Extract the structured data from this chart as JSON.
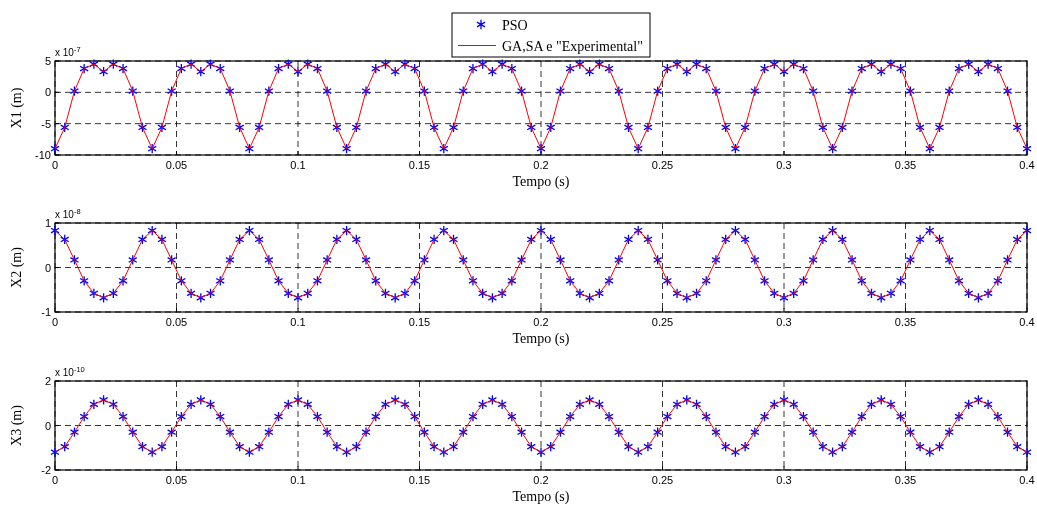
{
  "chart_data": [
    {
      "type": "line",
      "xlabel": "Tempo (s)",
      "ylabel": "X1 (m)",
      "annotations": [
        "x 10$^{-7}$"
      ],
      "legend": "top",
      "grid": true,
      "x": [
        0,
        0.004,
        0.008,
        0.012,
        0.016,
        0.02,
        0.024,
        0.028,
        0.032,
        0.036,
        0.04,
        0.044,
        0.048,
        0.052,
        0.056,
        0.06,
        0.064,
        0.068,
        0.072,
        0.076,
        0.08,
        0.084,
        0.088,
        0.092,
        0.096,
        0.1,
        0.104,
        0.108,
        0.112,
        0.116,
        0.12,
        0.124,
        0.128,
        0.132,
        0.136,
        0.14,
        0.144,
        0.148,
        0.152,
        0.156,
        0.16,
        0.164,
        0.168,
        0.172,
        0.176,
        0.18,
        0.184,
        0.188,
        0.192,
        0.196,
        0.2,
        0.204,
        0.208,
        0.212,
        0.216,
        0.22,
        0.224,
        0.228,
        0.232,
        0.236,
        0.24,
        0.244,
        0.248,
        0.252,
        0.256,
        0.26,
        0.264,
        0.268,
        0.272,
        0.276,
        0.28,
        0.284,
        0.288,
        0.292,
        0.296,
        0.3,
        0.304,
        0.308,
        0.312,
        0.316,
        0.32,
        0.324,
        0.328,
        0.332,
        0.336,
        0.34,
        0.344,
        0.348,
        0.352,
        0.356,
        0.36,
        0.364,
        0.368,
        0.372,
        0.376,
        0.38,
        0.384,
        0.388,
        0.392,
        0.396,
        0.4
      ],
      "xlim": [
        0,
        0.4
      ],
      "xticks": [
        0,
        0.05,
        0.1,
        0.15,
        0.2,
        0.25,
        0.3,
        0.35,
        0.4
      ],
      "ylim": [
        -10,
        5
      ],
      "yticks": [
        -10,
        -5,
        0,
        5
      ],
      "series": [
        {
          "name": "PSO",
          "type": "scatter",
          "marker": "cross",
          "color": "#0000ff",
          "values": [
            -9,
            -5.6,
            0.2,
            3.8,
            4.5,
            3.3,
            4.5,
            3.8,
            0.2,
            -5.6,
            -9,
            -5.6,
            0.2,
            3.8,
            4.5,
            3.3,
            4.5,
            3.8,
            0.2,
            -5.6,
            -9,
            -5.6,
            0.2,
            3.8,
            4.5,
            3.3,
            4.5,
            3.8,
            0.2,
            -5.6,
            -9,
            -5.6,
            0.2,
            3.8,
            4.5,
            3.3,
            4.5,
            3.8,
            0.2,
            -5.6,
            -9,
            -5.6,
            0.2,
            3.8,
            4.5,
            3.3,
            4.5,
            3.8,
            0.2,
            -5.6,
            -9,
            -5.6,
            0.2,
            3.8,
            4.5,
            3.3,
            4.5,
            3.8,
            0.2,
            -5.6,
            -9,
            -5.6,
            0.2,
            3.8,
            4.5,
            3.3,
            4.5,
            3.8,
            0.2,
            -5.6,
            -9,
            -5.6,
            0.2,
            3.8,
            4.5,
            3.3,
            4.5,
            3.8,
            0.2,
            -5.6,
            -9,
            -5.6,
            0.2,
            3.8,
            4.5,
            3.3,
            4.5,
            3.8,
            0.2,
            -5.6,
            -9,
            -5.6,
            0.2,
            3.8,
            4.5,
            3.3,
            4.5,
            3.8,
            0.2,
            -5.6,
            -9
          ]
        },
        {
          "name": "GA,SA e \"Experimental\"",
          "type": "line",
          "color": "#ff0000",
          "values": [
            -9,
            -5.6,
            0.2,
            3.8,
            4.5,
            3.3,
            4.5,
            3.8,
            0.2,
            -5.6,
            -9,
            -5.6,
            0.2,
            3.8,
            4.5,
            3.3,
            4.5,
            3.8,
            0.2,
            -5.6,
            -9,
            -5.6,
            0.2,
            3.8,
            4.5,
            3.3,
            4.5,
            3.8,
            0.2,
            -5.6,
            -9,
            -5.6,
            0.2,
            3.8,
            4.5,
            3.3,
            4.5,
            3.8,
            0.2,
            -5.6,
            -9,
            -5.6,
            0.2,
            3.8,
            4.5,
            3.3,
            4.5,
            3.8,
            0.2,
            -5.6,
            -9,
            -5.6,
            0.2,
            3.8,
            4.5,
            3.3,
            4.5,
            3.8,
            0.2,
            -5.6,
            -9,
            -5.6,
            0.2,
            3.8,
            4.5,
            3.3,
            4.5,
            3.8,
            0.2,
            -5.6,
            -9,
            -5.6,
            0.2,
            3.8,
            4.5,
            3.3,
            4.5,
            3.8,
            0.2,
            -5.6,
            -9,
            -5.6,
            0.2,
            3.8,
            4.5,
            3.3,
            4.5,
            3.8,
            0.2,
            -5.6,
            -9,
            -5.6,
            0.2,
            3.8,
            4.5,
            3.3,
            4.5,
            3.8,
            0.2,
            -5.6,
            -9
          ]
        }
      ]
    },
    {
      "type": "line",
      "xlabel": "Tempo (s)",
      "ylabel": "X2 (m)",
      "annotations": [
        "x 10$^{-8}$"
      ],
      "grid": true,
      "x": [
        0,
        0.004,
        0.008,
        0.012,
        0.016,
        0.02,
        0.024,
        0.028,
        0.032,
        0.036,
        0.04,
        0.044,
        0.048,
        0.052,
        0.056,
        0.06,
        0.064,
        0.068,
        0.072,
        0.076,
        0.08,
        0.084,
        0.088,
        0.092,
        0.096,
        0.1,
        0.104,
        0.108,
        0.112,
        0.116,
        0.12,
        0.124,
        0.128,
        0.132,
        0.136,
        0.14,
        0.144,
        0.148,
        0.152,
        0.156,
        0.16,
        0.164,
        0.168,
        0.172,
        0.176,
        0.18,
        0.184,
        0.188,
        0.192,
        0.196,
        0.2,
        0.204,
        0.208,
        0.212,
        0.216,
        0.22,
        0.224,
        0.228,
        0.232,
        0.236,
        0.24,
        0.244,
        0.248,
        0.252,
        0.256,
        0.26,
        0.264,
        0.268,
        0.272,
        0.276,
        0.28,
        0.284,
        0.288,
        0.292,
        0.296,
        0.3,
        0.304,
        0.308,
        0.312,
        0.316,
        0.32,
        0.324,
        0.328,
        0.332,
        0.336,
        0.34,
        0.344,
        0.348,
        0.352,
        0.356,
        0.36,
        0.364,
        0.368,
        0.372,
        0.376,
        0.38,
        0.384,
        0.388,
        0.392,
        0.396,
        0.4
      ],
      "xlim": [
        0,
        0.4
      ],
      "xticks": [
        0,
        0.05,
        0.1,
        0.15,
        0.2,
        0.25,
        0.3,
        0.35,
        0.4
      ],
      "ylim": [
        -1,
        1
      ],
      "yticks": [
        -1,
        0,
        1
      ],
      "series": [
        {
          "type": "scatter",
          "marker": "cross",
          "color": "#0000ff",
          "values": [
            0.83,
            0.63,
            0.17,
            -0.3,
            -0.58,
            -0.68,
            -0.58,
            -0.3,
            0.17,
            0.63,
            0.83,
            0.63,
            0.17,
            -0.3,
            -0.58,
            -0.68,
            -0.58,
            -0.3,
            0.17,
            0.63,
            0.83,
            0.63,
            0.17,
            -0.3,
            -0.58,
            -0.68,
            -0.58,
            -0.3,
            0.17,
            0.63,
            0.83,
            0.63,
            0.17,
            -0.3,
            -0.58,
            -0.68,
            -0.58,
            -0.3,
            0.17,
            0.63,
            0.83,
            0.63,
            0.17,
            -0.3,
            -0.58,
            -0.68,
            -0.58,
            -0.3,
            0.17,
            0.63,
            0.83,
            0.63,
            0.17,
            -0.3,
            -0.58,
            -0.68,
            -0.58,
            -0.3,
            0.17,
            0.63,
            0.83,
            0.63,
            0.17,
            -0.3,
            -0.58,
            -0.68,
            -0.58,
            -0.3,
            0.17,
            0.63,
            0.83,
            0.63,
            0.17,
            -0.3,
            -0.58,
            -0.68,
            -0.58,
            -0.3,
            0.17,
            0.63,
            0.83,
            0.63,
            0.17,
            -0.3,
            -0.58,
            -0.68,
            -0.58,
            -0.3,
            0.17,
            0.63,
            0.83,
            0.63,
            0.17,
            -0.3,
            -0.58,
            -0.68,
            -0.58,
            -0.3,
            0.17,
            0.63,
            0.83
          ]
        },
        {
          "type": "line",
          "color": "#ff0000",
          "values": [
            0.83,
            0.63,
            0.17,
            -0.3,
            -0.58,
            -0.68,
            -0.58,
            -0.3,
            0.17,
            0.63,
            0.83,
            0.63,
            0.17,
            -0.3,
            -0.58,
            -0.68,
            -0.58,
            -0.3,
            0.17,
            0.63,
            0.83,
            0.63,
            0.17,
            -0.3,
            -0.58,
            -0.68,
            -0.58,
            -0.3,
            0.17,
            0.63,
            0.83,
            0.63,
            0.17,
            -0.3,
            -0.58,
            -0.68,
            -0.58,
            -0.3,
            0.17,
            0.63,
            0.83,
            0.63,
            0.17,
            -0.3,
            -0.58,
            -0.68,
            -0.58,
            -0.3,
            0.17,
            0.63,
            0.83,
            0.63,
            0.17,
            -0.3,
            -0.58,
            -0.68,
            -0.58,
            -0.3,
            0.17,
            0.63,
            0.83,
            0.63,
            0.17,
            -0.3,
            -0.58,
            -0.68,
            -0.58,
            -0.3,
            0.17,
            0.63,
            0.83,
            0.63,
            0.17,
            -0.3,
            -0.58,
            -0.68,
            -0.58,
            -0.3,
            0.17,
            0.63,
            0.83,
            0.63,
            0.17,
            -0.3,
            -0.58,
            -0.68,
            -0.58,
            -0.3,
            0.17,
            0.63,
            0.83,
            0.63,
            0.17,
            -0.3,
            -0.58,
            -0.68,
            -0.58,
            -0.3,
            0.17,
            0.63,
            0.83
          ]
        }
      ]
    },
    {
      "type": "line",
      "xlabel": "Tempo (s)",
      "ylabel": "X3 (m)",
      "annotations": [
        "x 10$^{-10}$"
      ],
      "grid": true,
      "x": [
        0,
        0.004,
        0.008,
        0.012,
        0.016,
        0.02,
        0.024,
        0.028,
        0.032,
        0.036,
        0.04,
        0.044,
        0.048,
        0.052,
        0.056,
        0.06,
        0.064,
        0.068,
        0.072,
        0.076,
        0.08,
        0.084,
        0.088,
        0.092,
        0.096,
        0.1,
        0.104,
        0.108,
        0.112,
        0.116,
        0.12,
        0.124,
        0.128,
        0.132,
        0.136,
        0.14,
        0.144,
        0.148,
        0.152,
        0.156,
        0.16,
        0.164,
        0.168,
        0.172,
        0.176,
        0.18,
        0.184,
        0.188,
        0.192,
        0.196,
        0.2,
        0.204,
        0.208,
        0.212,
        0.216,
        0.22,
        0.224,
        0.228,
        0.232,
        0.236,
        0.24,
        0.244,
        0.248,
        0.252,
        0.256,
        0.26,
        0.264,
        0.268,
        0.272,
        0.276,
        0.28,
        0.284,
        0.288,
        0.292,
        0.296,
        0.3,
        0.304,
        0.308,
        0.312,
        0.316,
        0.32,
        0.324,
        0.328,
        0.332,
        0.336,
        0.34,
        0.344,
        0.348,
        0.352,
        0.356,
        0.36,
        0.364,
        0.368,
        0.372,
        0.376,
        0.38,
        0.384,
        0.388,
        0.392,
        0.396,
        0.4
      ],
      "xlim": [
        0,
        0.4
      ],
      "xticks": [
        0,
        0.05,
        0.1,
        0.15,
        0.2,
        0.25,
        0.3,
        0.35,
        0.4
      ],
      "ylim": [
        -2,
        2
      ],
      "yticks": [
        -2,
        0,
        2
      ],
      "series": [
        {
          "type": "scatter",
          "marker": "cross",
          "color": "#0000ff",
          "values": [
            -1.2,
            -0.95,
            -0.3,
            0.4,
            0.95,
            1.15,
            0.95,
            0.4,
            -0.3,
            -0.95,
            -1.2,
            -0.95,
            -0.3,
            0.4,
            0.95,
            1.15,
            0.95,
            0.4,
            -0.3,
            -0.95,
            -1.2,
            -0.95,
            -0.3,
            0.4,
            0.95,
            1.15,
            0.95,
            0.4,
            -0.3,
            -0.95,
            -1.2,
            -0.95,
            -0.3,
            0.4,
            0.95,
            1.15,
            0.95,
            0.4,
            -0.3,
            -0.95,
            -1.2,
            -0.95,
            -0.3,
            0.4,
            0.95,
            1.15,
            0.95,
            0.4,
            -0.3,
            -0.95,
            -1.2,
            -0.95,
            -0.3,
            0.4,
            0.95,
            1.15,
            0.95,
            0.4,
            -0.3,
            -0.95,
            -1.2,
            -0.95,
            -0.3,
            0.4,
            0.95,
            1.15,
            0.95,
            0.4,
            -0.3,
            -0.95,
            -1.2,
            -0.95,
            -0.3,
            0.4,
            0.95,
            1.15,
            0.95,
            0.4,
            -0.3,
            -0.95,
            -1.2,
            -0.95,
            -0.3,
            0.4,
            0.95,
            1.15,
            0.95,
            0.4,
            -0.3,
            -0.95,
            -1.2,
            -0.95,
            -0.3,
            0.4,
            0.95,
            1.15,
            0.95,
            0.4,
            -0.3,
            -0.95,
            -1.2
          ]
        },
        {
          "type": "line",
          "color": "#ff0000",
          "values": [
            -1.2,
            -0.95,
            -0.3,
            0.4,
            0.95,
            1.15,
            0.95,
            0.4,
            -0.3,
            -0.95,
            -1.2,
            -0.95,
            -0.3,
            0.4,
            0.95,
            1.15,
            0.95,
            0.4,
            -0.3,
            -0.95,
            -1.2,
            -0.95,
            -0.3,
            0.4,
            0.95,
            1.15,
            0.95,
            0.4,
            -0.3,
            -0.95,
            -1.2,
            -0.95,
            -0.3,
            0.4,
            0.95,
            1.15,
            0.95,
            0.4,
            -0.3,
            -0.95,
            -1.2,
            -0.95,
            -0.3,
            0.4,
            0.95,
            1.15,
            0.95,
            0.4,
            -0.3,
            -0.95,
            -1.2,
            -0.95,
            -0.3,
            0.4,
            0.95,
            1.15,
            0.95,
            0.4,
            -0.3,
            -0.95,
            -1.2,
            -0.95,
            -0.3,
            0.4,
            0.95,
            1.15,
            0.95,
            0.4,
            -0.3,
            -0.95,
            -1.2,
            -0.95,
            -0.3,
            0.4,
            0.95,
            1.15,
            0.95,
            0.4,
            -0.3,
            -0.95,
            -1.2,
            -0.95,
            -0.3,
            0.4,
            0.95,
            1.15,
            0.95,
            0.4,
            -0.3,
            -0.95,
            -1.2,
            -0.95,
            -0.3,
            0.4,
            0.95,
            1.15,
            0.95,
            0.4,
            -0.3,
            -0.95,
            -1.2
          ]
        }
      ]
    }
  ]
}
